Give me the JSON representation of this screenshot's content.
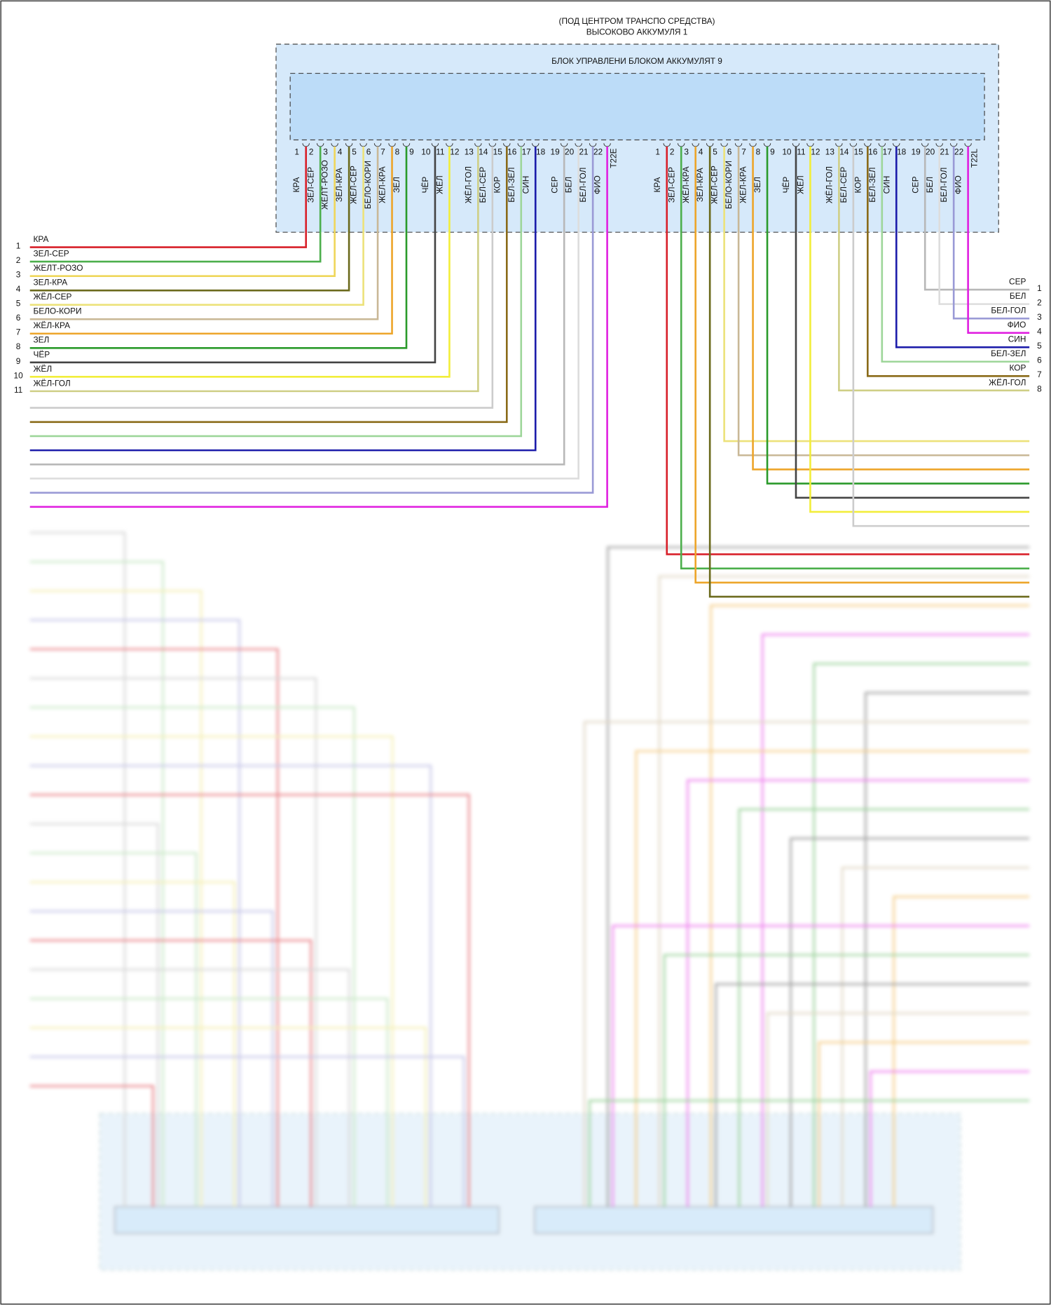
{
  "header": {
    "location": "(ПОД ЦЕНТРОМ ТРАНСПО СРЕДСТВА)",
    "battery": "ВЫСОКОВО АККУМУЛЯ 1"
  },
  "module": {
    "title": "БЛОК УПРАВЛЕНИ БЛОКОМ АККУМУЛЯТ 9"
  },
  "connectors": [
    {
      "name": "T22E",
      "pins": [
        {
          "num": "1",
          "wire": "КРА",
          "color": "#d8202a"
        },
        {
          "num": "2",
          "wire": "ЗЕЛ-СЕР",
          "color": "#4caf4c"
        },
        {
          "num": "3",
          "wire": "ЖЕЛТ-РОЗО",
          "color": "#efd65a"
        },
        {
          "num": "4",
          "wire": "ЗЕЛ-КРА",
          "color": "#6b6a1c"
        },
        {
          "num": "5",
          "wire": "ЖЁЛ-СЕР",
          "color": "#ece27a"
        },
        {
          "num": "6",
          "wire": "БЕЛО-КОРИ",
          "color": "#c9b897"
        },
        {
          "num": "7",
          "wire": "ЖЁЛ-КРА",
          "color": "#eda52a"
        },
        {
          "num": "8",
          "wire": "ЗЕЛ",
          "color": "#2a9a2a"
        },
        {
          "num": "9"
        },
        {
          "num": "10",
          "wire": "ЧЁР",
          "color": "#444444"
        },
        {
          "num": "11",
          "wire": "ЖЁЛ",
          "color": "#f2ee3a"
        },
        {
          "num": "12"
        },
        {
          "num": "13",
          "wire": "ЖЁЛ-ГОЛ",
          "color": "#cfcf86"
        },
        {
          "num": "14",
          "wire": "БЕЛ-СЕР",
          "color": "#cccccc"
        },
        {
          "num": "15",
          "wire": "КОР",
          "color": "#8a6a18"
        },
        {
          "num": "16",
          "wire": "БЕЛ-ЗЕЛ",
          "color": "#9ed69a"
        },
        {
          "num": "17",
          "wire": "СИН",
          "color": "#1c1caa"
        },
        {
          "num": "18"
        },
        {
          "num": "19",
          "wire": "СЕР",
          "color": "#b8b8b8"
        },
        {
          "num": "20",
          "wire": "БЕЛ",
          "color": "#dddddd"
        },
        {
          "num": "21",
          "wire": "БЕЛ-ГОЛ",
          "color": "#9a9ad6"
        },
        {
          "num": "22",
          "wire": "ФИО",
          "color": "#e020e0"
        }
      ]
    },
    {
      "name": "T22L",
      "pins": [
        {
          "num": "1",
          "wire": "КРА",
          "color": "#d8202a"
        },
        {
          "num": "2",
          "wire": "ЗЕЛ-СЕР",
          "color": "#4caf4c"
        },
        {
          "num": "3",
          "wire": "ЖЁЛ-КРА",
          "color": "#eda52a"
        },
        {
          "num": "4",
          "wire": "ЗЕЛ-КРА",
          "color": "#6b6a1c"
        },
        {
          "num": "5",
          "wire": "ЖЁЛ-СЕР",
          "color": "#ece27a"
        },
        {
          "num": "6",
          "wire": "БЕЛО-КОРИ",
          "color": "#c9b897"
        },
        {
          "num": "7",
          "wire": "ЖЁЛ-КРА",
          "color": "#eda52a"
        },
        {
          "num": "8",
          "wire": "ЗЕЛ",
          "color": "#2a9a2a"
        },
        {
          "num": "9"
        },
        {
          "num": "10",
          "wire": "ЧЁР",
          "color": "#444444"
        },
        {
          "num": "11",
          "wire": "ЖЁЛ",
          "color": "#f2ee3a"
        },
        {
          "num": "12"
        },
        {
          "num": "13",
          "wire": "ЖЁЛ-ГОЛ",
          "color": "#cfcf86"
        },
        {
          "num": "14",
          "wire": "БЕЛ-СЕР",
          "color": "#cccccc"
        },
        {
          "num": "15",
          "wire": "КОР",
          "color": "#8a6a18"
        },
        {
          "num": "16",
          "wire": "БЕЛ-ЗЕЛ",
          "color": "#9ed69a"
        },
        {
          "num": "17",
          "wire": "СИН",
          "color": "#1c1caa"
        },
        {
          "num": "18"
        },
        {
          "num": "19",
          "wire": "СЕР",
          "color": "#b8b8b8"
        },
        {
          "num": "20",
          "wire": "БЕЛ",
          "color": "#dddddd"
        },
        {
          "num": "21",
          "wire": "БЕЛ-ГОЛ",
          "color": "#9a9ad6"
        },
        {
          "num": "22",
          "wire": "ФИО",
          "color": "#e020e0"
        }
      ]
    }
  ],
  "left_harness": [
    {
      "num": "1",
      "label": "КРА"
    },
    {
      "num": "2",
      "label": "ЗЕЛ-СЕР"
    },
    {
      "num": "3",
      "label": "ЖЕЛТ-РОЗО"
    },
    {
      "num": "4",
      "label": "ЗЕЛ-КРА"
    },
    {
      "num": "5",
      "label": "ЖЁЛ-СЕР"
    },
    {
      "num": "6",
      "label": "БЕЛО-КОРИ"
    },
    {
      "num": "7",
      "label": "ЖЁЛ-КРА"
    },
    {
      "num": "8",
      "label": "ЗЕЛ"
    },
    {
      "num": "9",
      "label": "ЧЁР"
    },
    {
      "num": "10",
      "label": "ЖЁЛ"
    },
    {
      "num": "11",
      "label": "ЖЁЛ-ГОЛ"
    }
  ],
  "right_harness": [
    {
      "num": "1",
      "label": "СЕР"
    },
    {
      "num": "2",
      "label": "БЕЛ"
    },
    {
      "num": "3",
      "label": "БЕЛ-ГОЛ"
    },
    {
      "num": "4",
      "label": "ФИО"
    },
    {
      "num": "5",
      "label": "СИН"
    },
    {
      "num": "6",
      "label": "БЕЛ-ЗЕЛ"
    },
    {
      "num": "7",
      "label": "КОР"
    },
    {
      "num": "8",
      "label": "ЖЁЛ-ГОЛ"
    }
  ]
}
